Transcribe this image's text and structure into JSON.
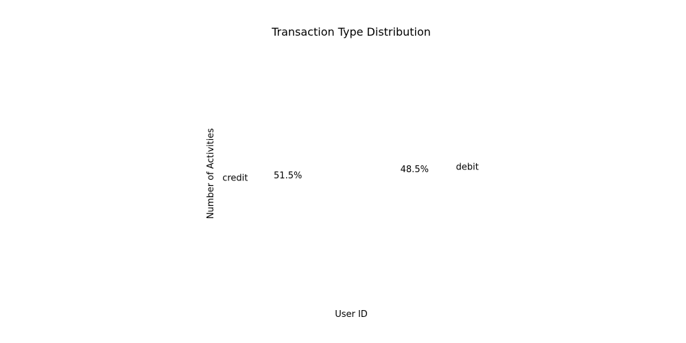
{
  "chart_data": {
    "type": "pie",
    "title": "Transaction Type Distribution",
    "xlabel": "User ID",
    "ylabel": "Number of Activities",
    "categories": [
      "credit",
      "debit"
    ],
    "values": [
      51.5,
      48.5
    ],
    "labels": [
      "credit",
      "debit"
    ],
    "percent_labels": [
      "51.5%",
      "48.5%"
    ],
    "colors": [
      "#ffffff",
      "#ffffff"
    ],
    "start_angle_deg": 90,
    "grid": false,
    "legend": "none"
  }
}
